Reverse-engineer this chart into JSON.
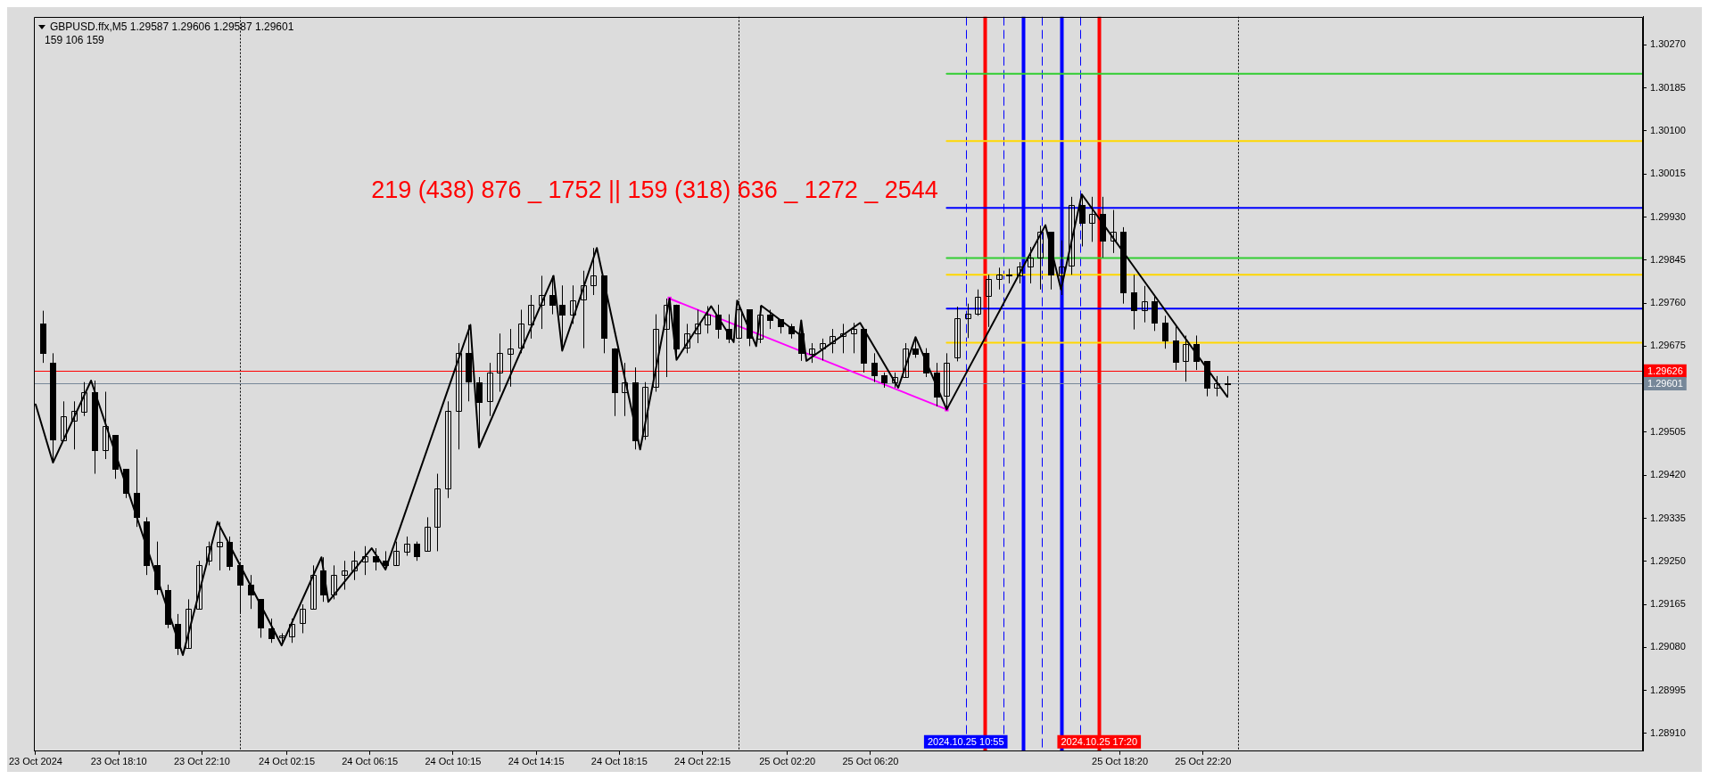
{
  "chart_data": {
    "type": "candlestick",
    "title": "GBPUSD.ffx,M5 1.29587 1.29606 1.29587 1.29601",
    "subtitle": "159 106 159",
    "annotations": [
      "219 (438) 876 _ 1752 || 159 (318) 636 _ 1272 _ 2544"
    ],
    "color": "#000000",
    "x": [
      "2024-10-23T14:30",
      "2024-10-23T15:00",
      "2024-10-23T15:30",
      "2024-10-23T16:00",
      "2024-10-23T16:30",
      "2024-10-23T17:00",
      "2024-10-23T17:30",
      "2024-10-23T18:00",
      "2024-10-23T18:30",
      "2024-10-23T19:00",
      "2024-10-23T19:30",
      "2024-10-23T20:00",
      "2024-10-23T20:30",
      "2024-10-23T21:00",
      "2024-10-23T21:30",
      "2024-10-23T22:00",
      "2024-10-23T22:30",
      "2024-10-23T23:00",
      "2024-10-23T23:30",
      "2024-10-24T00:00",
      "2024-10-24T00:30",
      "2024-10-24T01:00",
      "2024-10-24T01:30",
      "2024-10-24T02:00",
      "2024-10-24T02:30",
      "2024-10-24T03:00",
      "2024-10-24T03:30",
      "2024-10-24T04:00",
      "2024-10-24T04:30",
      "2024-10-24T05:00",
      "2024-10-24T05:30",
      "2024-10-24T06:00",
      "2024-10-24T06:30",
      "2024-10-24T07:00",
      "2024-10-24T07:30",
      "2024-10-24T08:00",
      "2024-10-24T08:30",
      "2024-10-24T09:00",
      "2024-10-24T09:30",
      "2024-10-24T10:00",
      "2024-10-24T10:30",
      "2024-10-24T11:00",
      "2024-10-24T11:30",
      "2024-10-24T12:00",
      "2024-10-24T12:30",
      "2024-10-24T13:00",
      "2024-10-24T13:30",
      "2024-10-24T14:00",
      "2024-10-24T14:30",
      "2024-10-24T15:00",
      "2024-10-24T15:30",
      "2024-10-24T16:00",
      "2024-10-24T16:30",
      "2024-10-24T17:00",
      "2024-10-24T17:30",
      "2024-10-24T18:00",
      "2024-10-24T18:30",
      "2024-10-24T19:00",
      "2024-10-24T19:30",
      "2024-10-24T20:00",
      "2024-10-24T20:30",
      "2024-10-24T21:00",
      "2024-10-24T21:30",
      "2024-10-24T22:00",
      "2024-10-24T22:30",
      "2024-10-24T23:00",
      "2024-10-24T23:30",
      "2024-10-25T00:00",
      "2024-10-25T00:30",
      "2024-10-25T01:00",
      "2024-10-25T01:30",
      "2024-10-25T02:00",
      "2024-10-25T02:30",
      "2024-10-25T03:00",
      "2024-10-25T03:30",
      "2024-10-25T04:00",
      "2024-10-25T04:30",
      "2024-10-25T05:00",
      "2024-10-25T05:30",
      "2024-10-25T06:00",
      "2024-10-25T06:30",
      "2024-10-25T07:00",
      "2024-10-25T07:30",
      "2024-10-25T08:00",
      "2024-10-25T08:30",
      "2024-10-25T09:00",
      "2024-10-25T09:30",
      "2024-10-25T10:00",
      "2024-10-25T10:30",
      "2024-10-25T11:00",
      "2024-10-25T11:30",
      "2024-10-25T12:00",
      "2024-10-25T12:30",
      "2024-10-25T13:00",
      "2024-10-25T13:30",
      "2024-10-25T14:00",
      "2024-10-25T14:30",
      "2024-10-25T15:00",
      "2024-10-25T15:30",
      "2024-10-25T16:00",
      "2024-10-25T16:30",
      "2024-10-25T17:00",
      "2024-10-25T17:30",
      "2024-10-25T18:00",
      "2024-10-25T18:30",
      "2024-10-25T19:00",
      "2024-10-25T19:30",
      "2024-10-25T20:00",
      "2024-10-25T20:30",
      "2024-10-25T21:00",
      "2024-10-25T21:30",
      "2024-10-25T22:00",
      "2024-10-25T22:30",
      "2024-10-25T23:00",
      "2024-10-25T23:30"
    ],
    "ohlc": [
      [
        1.29719,
        1.29745,
        1.29642,
        1.29661
      ],
      [
        1.29642,
        1.29661,
        1.29447,
        1.2949
      ],
      [
        1.2949,
        1.29566,
        1.2949,
        1.29537
      ],
      [
        1.29528,
        1.29566,
        1.29471,
        1.29547
      ],
      [
        1.29547,
        1.29604,
        1.29537,
        1.29585
      ],
      [
        1.29585,
        1.29607,
        1.29423,
        1.29471
      ],
      [
        1.29471,
        1.29585,
        1.29452,
        1.29518
      ],
      [
        1.29499,
        1.29499,
        1.29413,
        1.29432
      ],
      [
        1.29432,
        1.29432,
        1.29375,
        1.29385
      ],
      [
        1.29385,
        1.29471,
        1.29318,
        1.29337
      ],
      [
        1.29328,
        1.29337,
        1.29223,
        1.29242
      ],
      [
        1.29242,
        1.29289,
        1.29184,
        1.29194
      ],
      [
        1.29194,
        1.29204,
        1.29118,
        1.29127
      ],
      [
        1.29127,
        1.29146,
        1.29065,
        1.29079
      ],
      [
        1.29079,
        1.29175,
        1.29079,
        1.29156
      ],
      [
        1.29156,
        1.29251,
        1.29156,
        1.29242
      ],
      [
        1.29251,
        1.29289,
        1.29242,
        1.2928
      ],
      [
        1.2928,
        1.29328,
        1.29232,
        1.29289
      ],
      [
        1.29289,
        1.29299,
        1.29232,
        1.29242
      ],
      [
        1.29242,
        1.29242,
        1.29146,
        1.29204
      ],
      [
        1.29204,
        1.29223,
        1.29156,
        1.29184
      ],
      [
        1.29175,
        1.29175,
        1.29099,
        1.29118
      ],
      [
        1.29118,
        1.29137,
        1.29089,
        1.29099
      ],
      [
        1.29099,
        1.29108,
        1.29084,
        1.29103
      ],
      [
        1.29103,
        1.29137,
        1.29089,
        1.29127
      ],
      [
        1.29127,
        1.29165,
        1.29108,
        1.29156
      ],
      [
        1.29156,
        1.29242,
        1.29156,
        1.29223
      ],
      [
        1.29232,
        1.29258,
        1.2917,
        1.29184
      ],
      [
        1.29184,
        1.29242,
        1.29175,
        1.29223
      ],
      [
        1.29223,
        1.29251,
        1.29194,
        1.29232
      ],
      [
        1.29232,
        1.2927,
        1.29213,
        1.29251
      ],
      [
        1.29251,
        1.2928,
        1.29223,
        1.29261
      ],
      [
        1.29261,
        1.29276,
        1.29232,
        1.29251
      ],
      [
        1.29251,
        1.2927,
        1.29232,
        1.29242
      ],
      [
        1.29242,
        1.29289,
        1.29242,
        1.2927
      ],
      [
        1.2927,
        1.29299,
        1.29261,
        1.29285
      ],
      [
        1.29285,
        1.29289,
        1.29251,
        1.29261
      ],
      [
        1.2927,
        1.29337,
        1.2927,
        1.29318
      ],
      [
        1.29318,
        1.29423,
        1.2927,
        1.29394
      ],
      [
        1.29394,
        1.29566,
        1.29375,
        1.29547
      ],
      [
        1.29547,
        1.29681,
        1.29471,
        1.29661
      ],
      [
        1.29661,
        1.29717,
        1.29566,
        1.29604
      ],
      [
        1.29604,
        1.29614,
        1.29475,
        1.29566
      ],
      [
        1.29566,
        1.29642,
        1.29537,
        1.29623
      ],
      [
        1.29623,
        1.297,
        1.29585,
        1.29661
      ],
      [
        1.29661,
        1.29709,
        1.29595,
        1.29671
      ],
      [
        1.29671,
        1.29747,
        1.29661,
        1.29719
      ],
      [
        1.29719,
        1.29776,
        1.2969,
        1.29757
      ],
      [
        1.29757,
        1.29814,
        1.29709,
        1.29776
      ],
      [
        1.29776,
        1.29814,
        1.29738,
        1.29757
      ],
      [
        1.29757,
        1.29795,
        1.29666,
        1.29738
      ],
      [
        1.29738,
        1.29795,
        1.29719,
        1.29766
      ],
      [
        1.29766,
        1.29824,
        1.29671,
        1.29795
      ],
      [
        1.29795,
        1.29869,
        1.29776,
        1.29814
      ],
      [
        1.29814,
        1.29814,
        1.29661,
        1.2969
      ],
      [
        1.29671,
        1.29671,
        1.29537,
        1.29585
      ],
      [
        1.29585,
        1.29642,
        1.29537,
        1.29604
      ],
      [
        1.29604,
        1.29633,
        1.29471,
        1.2949
      ],
      [
        1.29499,
        1.29604,
        1.2949,
        1.29595
      ],
      [
        1.29595,
        1.29738,
        1.29585,
        1.29709
      ],
      [
        1.29709,
        1.29769,
        1.29614,
        1.29757
      ],
      [
        1.29757,
        1.29757,
        1.29648,
        1.29671
      ],
      [
        1.29671,
        1.29719,
        1.29661,
        1.297
      ],
      [
        1.297,
        1.29747,
        1.29681,
        1.29719
      ],
      [
        1.29719,
        1.29754,
        1.297,
        1.29738
      ],
      [
        1.29738,
        1.29757,
        1.2969,
        1.29709
      ],
      [
        1.29709,
        1.29738,
        1.29681,
        1.2969
      ],
      [
        1.2969,
        1.29764,
        1.2969,
        1.29747
      ],
      [
        1.29747,
        1.29747,
        1.29675,
        1.2969
      ],
      [
        1.2969,
        1.29755,
        1.29681,
        1.29738
      ],
      [
        1.29738,
        1.29747,
        1.29709,
        1.29728
      ],
      [
        1.29728,
        1.29728,
        1.297,
        1.29714
      ],
      [
        1.29714,
        1.29719,
        1.2969,
        1.297
      ],
      [
        1.297,
        1.29726,
        1.29646,
        1.29661
      ],
      [
        1.29661,
        1.29681,
        1.29642,
        1.29671
      ],
      [
        1.29671,
        1.2969,
        1.29647,
        1.29681
      ],
      [
        1.29681,
        1.29709,
        1.29661,
        1.29695
      ],
      [
        1.29695,
        1.29719,
        1.29661,
        1.297
      ],
      [
        1.297,
        1.29721,
        1.29661,
        1.29709
      ],
      [
        1.29709,
        1.29709,
        1.29623,
        1.29642
      ],
      [
        1.29642,
        1.29661,
        1.29604,
        1.29618
      ],
      [
        1.29618,
        1.29623,
        1.29593,
        1.29604
      ],
      [
        1.29604,
        1.29623,
        1.29593,
        1.29614
      ],
      [
        1.29614,
        1.29681,
        1.29614,
        1.29671
      ],
      [
        1.29671,
        1.29693,
        1.29652,
        1.29661
      ],
      [
        1.29661,
        1.29671,
        1.29614,
        1.29623
      ],
      [
        1.29623,
        1.29642,
        1.29556,
        1.29576
      ],
      [
        1.29576,
        1.29661,
        1.2955,
        1.29642
      ],
      [
        1.29653,
        1.29753,
        1.29645,
        1.2973
      ],
      [
        1.2973,
        1.29759,
        1.29691,
        1.29739
      ],
      [
        1.29739,
        1.29787,
        1.29735,
        1.29773
      ],
      [
        1.29773,
        1.29816,
        1.29713,
        1.29807
      ],
      [
        1.29807,
        1.2983,
        1.29787,
        1.29816
      ],
      [
        1.29816,
        1.29828,
        1.29799,
        1.29816
      ],
      [
        1.29816,
        1.29841,
        1.29799,
        1.29833
      ],
      [
        1.29833,
        1.29871,
        1.29799,
        1.2985
      ],
      [
        1.2985,
        1.29913,
        1.29787,
        1.29901
      ],
      [
        1.29901,
        1.29901,
        1.29787,
        1.29816
      ],
      [
        1.29816,
        1.29884,
        1.29776,
        1.29833
      ],
      [
        1.29833,
        1.2997,
        1.29816,
        1.29953
      ],
      [
        1.29953,
        1.29975,
        1.29872,
        1.29918
      ],
      [
        1.29918,
        1.2997,
        1.29881,
        1.29936
      ],
      [
        1.29936,
        1.2997,
        1.2985,
        1.29884
      ],
      [
        1.29884,
        1.29944,
        1.29859,
        1.29901
      ],
      [
        1.29901,
        1.2991,
        1.29759,
        1.29782
      ],
      [
        1.29782,
        1.29816,
        1.29708,
        1.29747
      ],
      [
        1.29747,
        1.29794,
        1.29722,
        1.29764
      ],
      [
        1.29764,
        1.29776,
        1.29705,
        1.29722
      ],
      [
        1.29722,
        1.29735,
        1.2967,
        1.29687
      ],
      [
        1.29687,
        1.29718,
        1.29628,
        1.29645
      ],
      [
        1.29645,
        1.29696,
        1.29605,
        1.29679
      ],
      [
        1.29679,
        1.29696,
        1.29628,
        1.29645
      ],
      [
        1.29645,
        1.29645,
        1.29576,
        1.29593
      ],
      [
        1.29593,
        1.29616,
        1.29576,
        1.29602
      ],
      [
        1.29602,
        1.29616,
        1.29575,
        1.29601
      ]
    ],
    "series": [
      {
        "type": "line",
        "color": "#000000",
        "x": [
          "2024-10-23T14:10",
          "2024-10-23T15:00",
          "2024-10-23T16:50",
          "2024-10-23T21:15",
          "2024-10-23T22:55",
          "2024-10-24T02:00",
          "2024-10-24T03:55",
          "2024-10-24T04:15",
          "2024-10-24T06:20",
          "2024-10-24T07:00",
          "2024-10-24T11:05",
          "2024-10-24T11:30",
          "2024-10-24T15:05",
          "2024-10-24T15:30",
          "2024-10-24T17:10",
          "2024-10-24T19:15",
          "2024-10-24T20:40",
          "2024-10-24T21:00",
          "2024-10-24T22:40",
          "2024-10-24T23:45",
          "2024-10-24T23:55",
          "2024-10-25T00:50",
          "2024-10-25T01:05",
          "2024-10-25T02:55",
          "2024-10-25T03:00",
          "2024-10-25T03:15",
          "2024-10-25T05:50",
          "2024-10-25T07:40",
          "2024-10-25T08:30",
          "2024-10-25T10:00",
          "2024-10-25T14:45",
          "2024-10-25T15:30",
          "2024-10-25T16:30",
          "2024-10-25T23:30"
        ],
        "values": [
          1.2956,
          1.29445,
          1.29607,
          1.29065,
          1.29328,
          1.29084,
          1.29258,
          1.2917,
          1.29276,
          1.29234,
          1.29717,
          1.29475,
          1.29814,
          1.29666,
          1.29869,
          1.29471,
          1.29769,
          1.29648,
          1.29754,
          1.29683,
          1.29765,
          1.29675,
          1.29755,
          1.29698,
          1.29726,
          1.29646,
          1.29721,
          1.29593,
          1.29693,
          1.2955,
          1.29914,
          1.29787,
          1.29975,
          1.29575
        ]
      },
      {
        "type": "line",
        "color": "#ff00ff",
        "marker": "square",
        "x": [
          "2024-10-24T20:40",
          "2024-10-25T10:00"
        ],
        "values": [
          1.29769,
          1.2955
        ]
      },
      {
        "type": "line",
        "color": "#32cd32",
        "x": [
          "2024-10-25T10:00",
          "2024-10-26T19:30"
        ],
        "values": [
          1.30213,
          1.30213
        ]
      },
      {
        "type": "line",
        "color": "#ffd700",
        "x": [
          "2024-10-25T10:00",
          "2024-10-26T19:30"
        ],
        "values": [
          1.3008,
          1.3008
        ]
      },
      {
        "type": "line",
        "color": "#0000ff",
        "x": [
          "2024-10-25T10:00",
          "2024-10-26T19:30"
        ],
        "values": [
          1.29948,
          1.29948
        ]
      },
      {
        "type": "line",
        "color": "#32cd32",
        "x": [
          "2024-10-25T10:00",
          "2024-10-26T19:30"
        ],
        "values": [
          1.29849,
          1.29849
        ]
      },
      {
        "type": "line",
        "color": "#ffd700",
        "x": [
          "2024-10-25T10:00",
          "2024-10-26T19:30"
        ],
        "values": [
          1.29816,
          1.29816
        ]
      },
      {
        "type": "line",
        "color": "#0000ff",
        "x": [
          "2024-10-25T10:00",
          "2024-10-26T19:30"
        ],
        "values": [
          1.29749,
          1.29749
        ]
      },
      {
        "type": "line",
        "color": "#ffd700",
        "x": [
          "2024-10-25T10:00",
          "2024-10-26T19:30"
        ],
        "values": [
          1.29682,
          1.29682
        ]
      }
    ],
    "ref_lines": [
      {
        "axis": "x",
        "value": "2024-10-24T00:00",
        "color": "#000000",
        "line_style": "dotted"
      },
      {
        "axis": "x",
        "value": "2024-10-25T00:00",
        "color": "#000000",
        "line_style": "dotted"
      },
      {
        "axis": "x",
        "value": "2024-10-26T00:00",
        "color": "#000000",
        "line_style": "dotted"
      },
      {
        "axis": "x",
        "value": "2024-10-25T10:55",
        "color": "#0000ff",
        "line_style": "dashed",
        "label": "2024.10.25 10:55"
      },
      {
        "axis": "x",
        "value": "2024-10-25T11:50",
        "color": "#ff0000",
        "line_style": "solid"
      },
      {
        "axis": "x",
        "value": "2024-10-25T12:45",
        "color": "#0000ff",
        "line_style": "dashed"
      },
      {
        "axis": "x",
        "value": "2024-10-25T13:40",
        "color": "#0000ff",
        "line_style": "solid"
      },
      {
        "axis": "x",
        "value": "2024-10-25T14:35",
        "color": "#0000ff",
        "line_style": "dashed"
      },
      {
        "axis": "x",
        "value": "2024-10-25T15:30",
        "color": "#0000ff",
        "line_style": "solid"
      },
      {
        "axis": "x",
        "value": "2024-10-25T16:25",
        "color": "#0000ff",
        "line_style": "dashed"
      },
      {
        "axis": "x",
        "value": "2024-10-25T17:20",
        "color": "#ff0000",
        "line_style": "solid",
        "label": "2024.10.25 17:20"
      },
      {
        "axis": "y",
        "value": 1.29626,
        "color": "#ff0000",
        "label": "1.29626"
      },
      {
        "axis": "y",
        "value": 1.29601,
        "color": "#778899",
        "label": "1.29601"
      }
    ],
    "xlim": [
      "2024-10-23T14:05",
      "2024-10-26T19:30"
    ],
    "xticks": [
      {
        "value": "2024-10-23T14:10",
        "label": "23 Oct 2024"
      },
      {
        "value": "2024-10-23T18:10",
        "label": "23 Oct 18:10"
      },
      {
        "value": "2024-10-23T22:10",
        "label": "23 Oct 22:10"
      },
      {
        "value": "2024-10-24T02:15",
        "label": "24 Oct 02:15"
      },
      {
        "value": "2024-10-24T06:15",
        "label": "24 Oct 06:15"
      },
      {
        "value": "2024-10-24T10:15",
        "label": "24 Oct 10:15"
      },
      {
        "value": "2024-10-24T14:15",
        "label": "24 Oct 14:15"
      },
      {
        "value": "2024-10-24T18:15",
        "label": "24 Oct 18:15"
      },
      {
        "value": "2024-10-24T22:15",
        "label": "24 Oct 22:15"
      },
      {
        "value": "2024-10-25T02:20",
        "label": "25 Oct 02:20"
      },
      {
        "value": "2024-10-25T06:20",
        "label": "25 Oct 06:20"
      },
      {
        "value": "2024-10-25T18:20",
        "label": "25 Oct 18:20"
      },
      {
        "value": "2024-10-25T22:20",
        "label": "25 Oct 22:20"
      }
    ],
    "ylim": [
      1.28875,
      1.30326
    ],
    "yticks": [
      {
        "value": 1.3027,
        "label": "1.30270"
      },
      1.30185,
      {
        "value": 1.301,
        "label": "1.30100"
      },
      1.30015,
      {
        "value": 1.2993,
        "label": "1.29930"
      },
      1.29845,
      {
        "value": 1.2976,
        "label": "1.29760"
      },
      1.29675,
      {
        "value": 1.2959,
        "label": null
      },
      1.29505,
      {
        "value": 1.2942,
        "label": "1.29420"
      },
      1.29335,
      {
        "value": 1.2925,
        "label": "1.29250"
      },
      1.29165,
      {
        "value": 1.2908,
        "label": "1.29080"
      },
      1.28995,
      {
        "value": 1.2891,
        "label": "1.28910"
      }
    ]
  }
}
